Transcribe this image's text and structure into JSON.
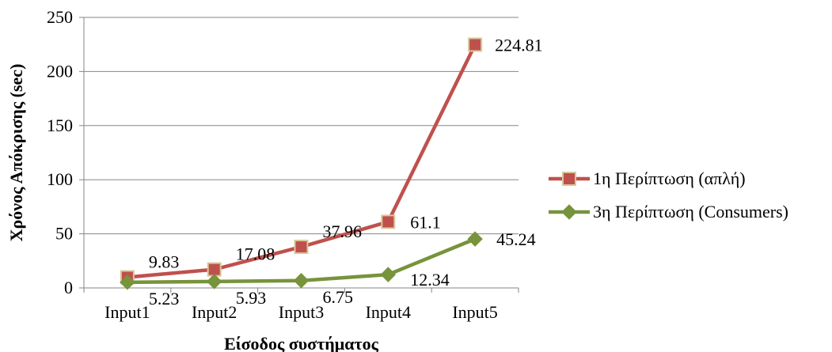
{
  "chart_data": {
    "type": "line",
    "title": "",
    "xlabel": "Είσοδος συστήματος",
    "ylabel": "Χρόνος Απόκρισης (sec)",
    "categories": [
      "Input1",
      "Input2",
      "Input3",
      "Input4",
      "Input5"
    ],
    "ylim": [
      0,
      250
    ],
    "yticks": [
      0,
      50,
      100,
      150,
      200,
      250
    ],
    "grid": true,
    "legend_position": "right",
    "series": [
      {
        "name": "1η Περίπτωση (απλή)",
        "values": [
          9.83,
          17.08,
          37.96,
          61.1,
          224.81
        ],
        "labels": [
          "9.83",
          "17.08",
          "37.96",
          "61.1",
          "224.81"
        ],
        "color": "#C0504D",
        "marker": "square",
        "marker_fill": "#C0504D",
        "marker_stroke": "#D7C99A"
      },
      {
        "name": "3η Περίπτωση (Consumers)",
        "values": [
          5.23,
          5.93,
          6.75,
          12.34,
          45.24
        ],
        "labels": [
          "5.23",
          "5.93",
          "6.75",
          "12.34",
          "45.24"
        ],
        "color": "#77933C",
        "marker": "diamond",
        "marker_fill": "#77933C",
        "marker_stroke": "#77933C"
      }
    ]
  }
}
